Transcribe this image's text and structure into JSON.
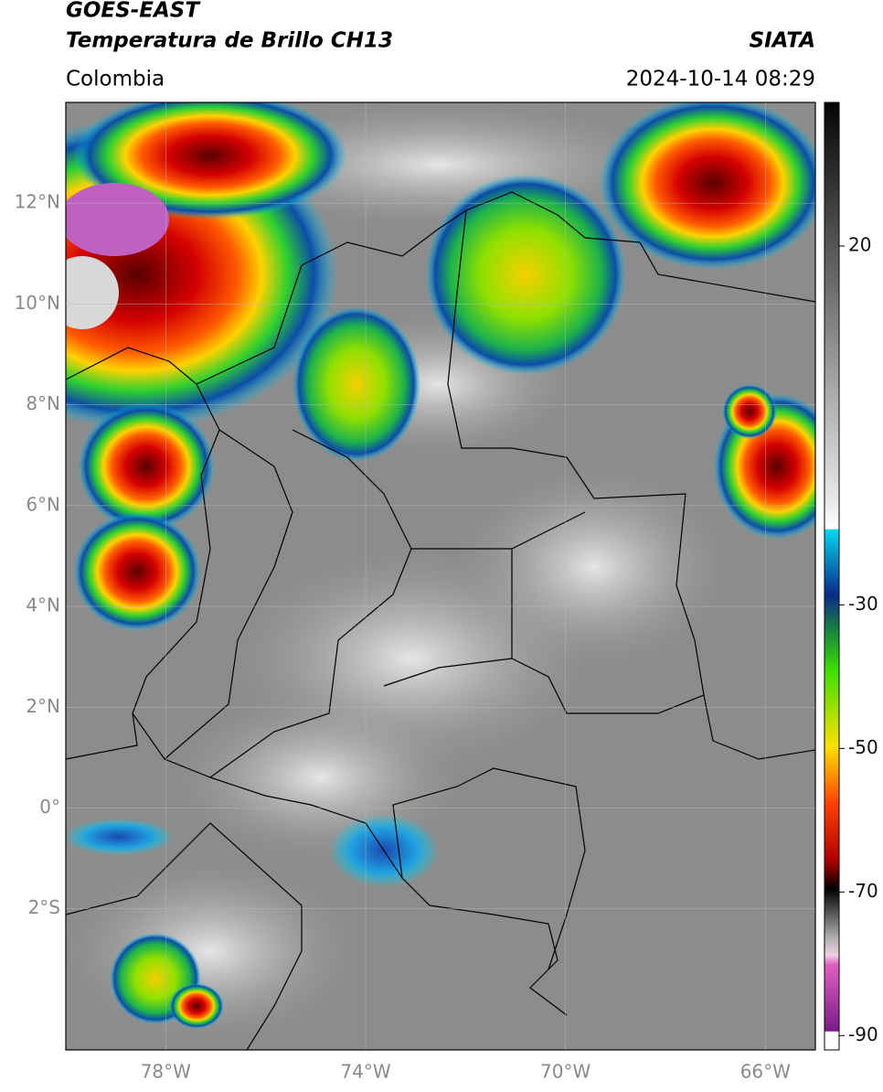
{
  "header": {
    "title_line1": "GOES-EAST",
    "title_line2": "Temperatura de Brillo CH13",
    "source": "SIATA",
    "region": "Colombia",
    "datetime": "2024-10-14 08:29"
  },
  "map": {
    "lonlim": [
      -80,
      -65
    ],
    "latlim": [
      -4.8,
      14
    ],
    "lat_ticks": [
      {
        "value": 12,
        "label": "12°N"
      },
      {
        "value": 10,
        "label": "10°N"
      },
      {
        "value": 8,
        "label": "8°N"
      },
      {
        "value": 6,
        "label": "6°N"
      },
      {
        "value": 4,
        "label": "4°N"
      },
      {
        "value": 2,
        "label": "2°N"
      },
      {
        "value": 0,
        "label": "0°"
      },
      {
        "value": -2,
        "label": "2°S"
      }
    ],
    "lon_ticks": [
      {
        "value": -78,
        "label": "78°W"
      },
      {
        "value": -74,
        "label": "74°W"
      },
      {
        "value": -70,
        "label": "70°W"
      },
      {
        "value": -66,
        "label": "66°W"
      }
    ]
  },
  "colorbar": {
    "lim": [
      -92,
      40
    ],
    "ticks": [
      20,
      -30,
      -50,
      -70,
      -90
    ]
  }
}
